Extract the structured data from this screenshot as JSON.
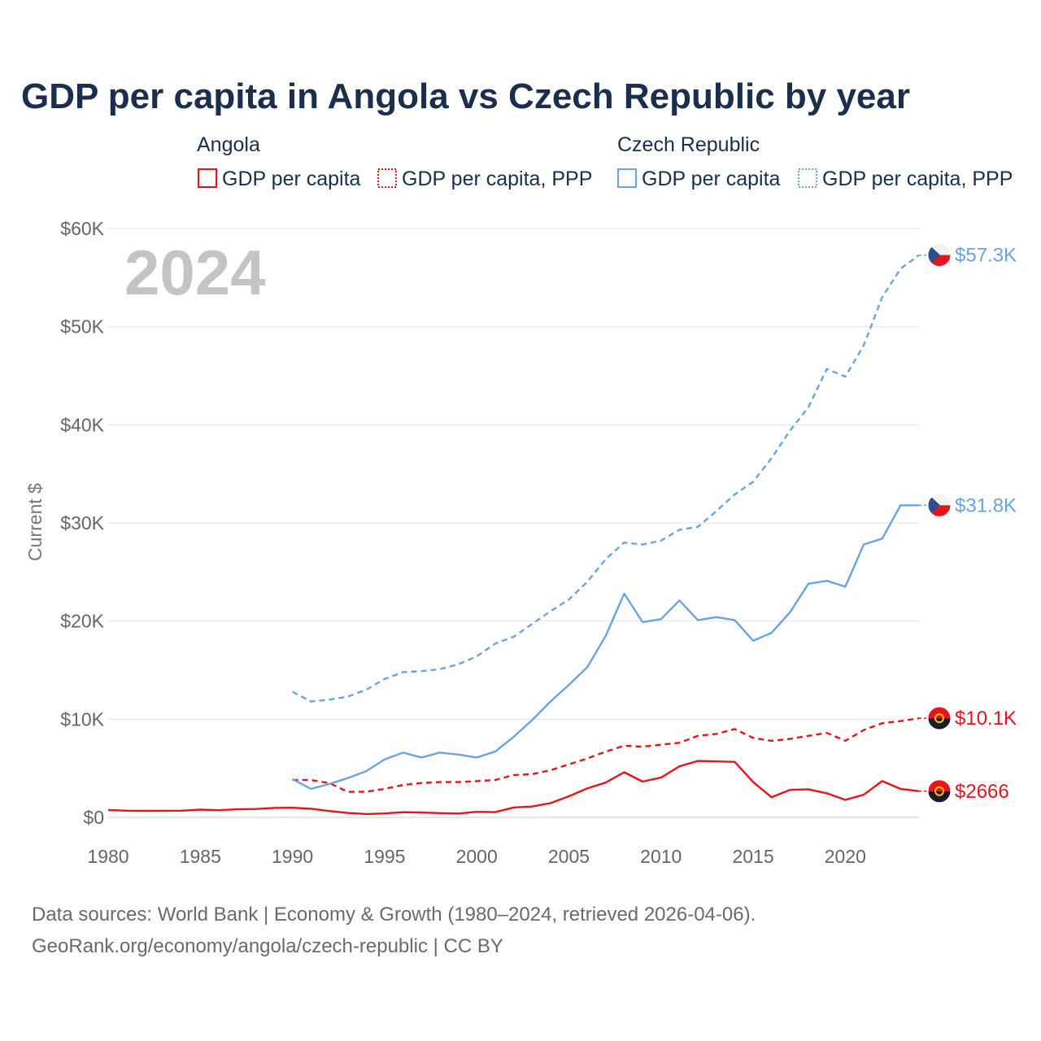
{
  "chart_data": {
    "type": "line",
    "title": "GDP per capita in Angola vs Czech Republic by year",
    "ylabel": "Current $",
    "xlabel": "",
    "year_watermark": "2024",
    "xlim": [
      1980,
      2024
    ],
    "ylim": [
      0,
      60000
    ],
    "x_ticks": [
      1980,
      1985,
      1990,
      1995,
      2000,
      2005,
      2010,
      2015,
      2020
    ],
    "y_ticks": [
      {
        "value": 0,
        "label": "$0"
      },
      {
        "value": 10000,
        "label": "$10K"
      },
      {
        "value": 20000,
        "label": "$20K"
      },
      {
        "value": 30000,
        "label": "$30K"
      },
      {
        "value": 40000,
        "label": "$40K"
      },
      {
        "value": 50000,
        "label": "$50K"
      },
      {
        "value": 60000,
        "label": "$60K"
      }
    ],
    "grid": true,
    "legend": {
      "placement": "top",
      "groups": [
        {
          "country": "Angola",
          "entries": [
            "GDP per capita",
            "GDP per capita, PPP"
          ]
        },
        {
          "country": "Czech Republic",
          "entries": [
            "GDP per capita",
            "GDP per capita, PPP"
          ]
        }
      ]
    },
    "series": [
      {
        "name": "Angola GDP per capita",
        "country": "Angola",
        "color": "#e8141c",
        "dash": "solid",
        "end_label": "$2666",
        "points": [
          [
            1980,
            750
          ],
          [
            1981,
            680
          ],
          [
            1982,
            660
          ],
          [
            1983,
            670
          ],
          [
            1984,
            680
          ],
          [
            1985,
            790
          ],
          [
            1986,
            730
          ],
          [
            1987,
            820
          ],
          [
            1988,
            850
          ],
          [
            1989,
            960
          ],
          [
            1990,
            980
          ],
          [
            1991,
            880
          ],
          [
            1992,
            650
          ],
          [
            1993,
            450
          ],
          [
            1994,
            340
          ],
          [
            1995,
            400
          ],
          [
            1996,
            520
          ],
          [
            1997,
            500
          ],
          [
            1998,
            430
          ],
          [
            1999,
            390
          ],
          [
            2000,
            560
          ],
          [
            2001,
            530
          ],
          [
            2002,
            1000
          ],
          [
            2003,
            1100
          ],
          [
            2004,
            1450
          ],
          [
            2005,
            2150
          ],
          [
            2006,
            2950
          ],
          [
            2007,
            3550
          ],
          [
            2008,
            4600
          ],
          [
            2009,
            3650
          ],
          [
            2010,
            4050
          ],
          [
            2011,
            5200
          ],
          [
            2012,
            5750
          ],
          [
            2013,
            5700
          ],
          [
            2014,
            5650
          ],
          [
            2015,
            3600
          ],
          [
            2016,
            2050
          ],
          [
            2017,
            2800
          ],
          [
            2018,
            2850
          ],
          [
            2019,
            2450
          ],
          [
            2020,
            1780
          ],
          [
            2021,
            2300
          ],
          [
            2022,
            3700
          ],
          [
            2023,
            2900
          ],
          [
            2024,
            2666
          ]
        ]
      },
      {
        "name": "Angola GDP per capita, PPP",
        "country": "Angola",
        "color": "#e8141c",
        "dash": "dashed",
        "end_label": "$10.1K",
        "points": [
          [
            1990,
            3800
          ],
          [
            1991,
            3800
          ],
          [
            1992,
            3500
          ],
          [
            1993,
            2600
          ],
          [
            1994,
            2600
          ],
          [
            1995,
            2900
          ],
          [
            1996,
            3300
          ],
          [
            1997,
            3500
          ],
          [
            1998,
            3600
          ],
          [
            1999,
            3600
          ],
          [
            2000,
            3700
          ],
          [
            2001,
            3800
          ],
          [
            2002,
            4300
          ],
          [
            2003,
            4400
          ],
          [
            2004,
            4800
          ],
          [
            2005,
            5400
          ],
          [
            2006,
            6000
          ],
          [
            2007,
            6700
          ],
          [
            2008,
            7300
          ],
          [
            2009,
            7200
          ],
          [
            2010,
            7400
          ],
          [
            2011,
            7600
          ],
          [
            2012,
            8300
          ],
          [
            2013,
            8500
          ],
          [
            2014,
            9000
          ],
          [
            2015,
            8100
          ],
          [
            2016,
            7800
          ],
          [
            2017,
            8000
          ],
          [
            2018,
            8300
          ],
          [
            2019,
            8600
          ],
          [
            2020,
            7800
          ],
          [
            2021,
            8900
          ],
          [
            2022,
            9600
          ],
          [
            2023,
            9800
          ],
          [
            2024,
            10100
          ]
        ]
      },
      {
        "name": "Czech Republic GDP per capita",
        "country": "Czech Republic",
        "color": "#6aa4dc",
        "dash": "solid",
        "end_label": "$31.8K",
        "points": [
          [
            1990,
            3900
          ],
          [
            1991,
            2900
          ],
          [
            1992,
            3400
          ],
          [
            1993,
            4000
          ],
          [
            1994,
            4700
          ],
          [
            1995,
            5900
          ],
          [
            1996,
            6600
          ],
          [
            1997,
            6100
          ],
          [
            1998,
            6600
          ],
          [
            1999,
            6400
          ],
          [
            2000,
            6100
          ],
          [
            2001,
            6700
          ],
          [
            2002,
            8200
          ],
          [
            2003,
            9900
          ],
          [
            2004,
            11800
          ],
          [
            2005,
            13500
          ],
          [
            2006,
            15300
          ],
          [
            2007,
            18500
          ],
          [
            2008,
            22800
          ],
          [
            2009,
            19900
          ],
          [
            2010,
            20200
          ],
          [
            2011,
            22100
          ],
          [
            2012,
            20100
          ],
          [
            2013,
            20400
          ],
          [
            2014,
            20100
          ],
          [
            2015,
            18000
          ],
          [
            2016,
            18800
          ],
          [
            2017,
            20900
          ],
          [
            2018,
            23800
          ],
          [
            2019,
            24100
          ],
          [
            2020,
            23500
          ],
          [
            2021,
            27800
          ],
          [
            2022,
            28400
          ],
          [
            2023,
            31800
          ],
          [
            2024,
            31800
          ]
        ]
      },
      {
        "name": "Czech Republic GDP per capita, PPP",
        "country": "Czech Republic",
        "color": "#6aa4dc",
        "dash": "dashed",
        "end_label": "$57.3K",
        "points": [
          [
            1990,
            12800
          ],
          [
            1991,
            11800
          ],
          [
            1992,
            12000
          ],
          [
            1993,
            12300
          ],
          [
            1994,
            13000
          ],
          [
            1995,
            14100
          ],
          [
            1996,
            14800
          ],
          [
            1997,
            14900
          ],
          [
            1998,
            15100
          ],
          [
            1999,
            15600
          ],
          [
            2000,
            16400
          ],
          [
            2001,
            17700
          ],
          [
            2002,
            18400
          ],
          [
            2003,
            19700
          ],
          [
            2004,
            21000
          ],
          [
            2005,
            22200
          ],
          [
            2006,
            24000
          ],
          [
            2007,
            26300
          ],
          [
            2008,
            28000
          ],
          [
            2009,
            27800
          ],
          [
            2010,
            28200
          ],
          [
            2011,
            29300
          ],
          [
            2012,
            29600
          ],
          [
            2013,
            31200
          ],
          [
            2014,
            32900
          ],
          [
            2015,
            34200
          ],
          [
            2016,
            36600
          ],
          [
            2017,
            39400
          ],
          [
            2018,
            41800
          ],
          [
            2019,
            45700
          ],
          [
            2020,
            44900
          ],
          [
            2021,
            48100
          ],
          [
            2022,
            53000
          ],
          [
            2023,
            55900
          ],
          [
            2024,
            57300
          ]
        ]
      }
    ]
  },
  "colors": {
    "title": "#1b2e4b",
    "angola": "#e8141c",
    "czech": "#6aa4dc",
    "grid": "#e6e6e6",
    "tick": "#666666",
    "watermark": "#c4c4c4"
  },
  "flags": {
    "angola": "angola-flag-icon",
    "czech": "czech-flag-icon"
  },
  "source": {
    "line1": "Data sources: World Bank | Economy & Growth (1980–2024, retrieved 2026-04-06).",
    "line2": "GeoRank.org/economy/angola/czech-republic | CC BY"
  }
}
